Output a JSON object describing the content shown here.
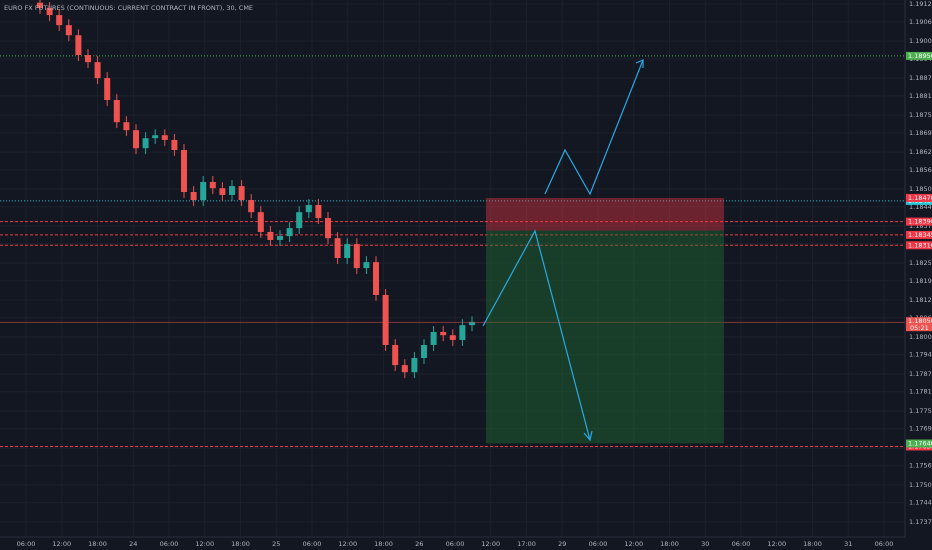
{
  "chart_data": {
    "type": "candlestick",
    "title": "EURO FX FUTURES (CONTINUOUS: CURRENT CONTRACT IN FRONT), 30, CME",
    "up_color": "#26a69a",
    "down_color": "#ef5350",
    "open": [
      1.1913,
      1.19112,
      1.19088,
      1.19054,
      1.1902,
      1.18953,
      1.18929,
      1.18875,
      1.18801,
      1.18726,
      1.18699,
      1.18638,
      1.18672,
      1.18682,
      1.18666,
      1.18632,
      1.1849,
      1.18463,
      1.18524,
      1.18503,
      1.1848,
      1.1851,
      1.18463,
      1.18422,
      1.18355,
      1.18328,
      1.18341,
      1.18368,
      1.18422,
      1.18446,
      1.18402,
      1.18334,
      1.18267,
      1.18314,
      1.18233,
      1.18253,
      1.18142,
      1.17973,
      1.17905,
      1.17881,
      1.17929,
      1.17973,
      1.18017,
      1.18006,
      1.1799,
      1.1804
    ],
    "high": [
      1.1915,
      1.19132,
      1.19108,
      1.19074,
      1.1904,
      1.18973,
      1.18949,
      1.18895,
      1.18821,
      1.18746,
      1.18719,
      1.18692,
      1.18702,
      1.18702,
      1.18686,
      1.18652,
      1.1851,
      1.18544,
      1.18544,
      1.18523,
      1.1853,
      1.1853,
      1.18483,
      1.18442,
      1.18375,
      1.18361,
      1.18388,
      1.18442,
      1.18466,
      1.18466,
      1.18422,
      1.18354,
      1.18334,
      1.18334,
      1.18273,
      1.18273,
      1.18162,
      1.17993,
      1.17925,
      1.17949,
      1.17993,
      1.18037,
      1.18037,
      1.18026,
      1.1806,
      1.1807
    ],
    "low": [
      1.19092,
      1.19068,
      1.19034,
      1.19,
      1.18933,
      1.18909,
      1.18855,
      1.18781,
      1.18706,
      1.18679,
      1.18618,
      1.18618,
      1.18652,
      1.18646,
      1.18612,
      1.1847,
      1.18443,
      1.18443,
      1.18483,
      1.1846,
      1.1846,
      1.18443,
      1.18402,
      1.18335,
      1.18308,
      1.18308,
      1.18321,
      1.18348,
      1.18402,
      1.18382,
      1.18314,
      1.18247,
      1.18247,
      1.18213,
      1.18213,
      1.18122,
      1.17953,
      1.17885,
      1.17861,
      1.17861,
      1.17909,
      1.17953,
      1.17986,
      1.1797,
      1.1797,
      1.1802
    ],
    "close": [
      1.19112,
      1.19088,
      1.19054,
      1.1902,
      1.18953,
      1.18929,
      1.18875,
      1.18801,
      1.18726,
      1.18699,
      1.18638,
      1.18672,
      1.18682,
      1.18666,
      1.18632,
      1.1849,
      1.18463,
      1.18524,
      1.18503,
      1.1848,
      1.1851,
      1.18463,
      1.18422,
      1.18355,
      1.18328,
      1.18341,
      1.18368,
      1.18422,
      1.18446,
      1.18402,
      1.18334,
      1.18267,
      1.18314,
      1.18233,
      1.18253,
      1.18142,
      1.17973,
      1.17905,
      1.17881,
      1.17929,
      1.17973,
      1.18017,
      1.18006,
      1.1799,
      1.1804,
      1.1805
    ],
    "ylim": [
      1.17324,
      1.19139
    ],
    "yticks": [
      1.17375,
      {
        "value": 1.1744,
        "label": "1.17440"
      },
      {
        "value": 1.175,
        "label": "1.17500"
      },
      1.17565,
      1.17625,
      {
        "value": 1.1769,
        "label": "1.17690"
      },
      {
        "value": 1.1775,
        "label": "1.17750"
      },
      1.17815,
      1.17875,
      {
        "value": 1.1794,
        "label": "1.17940"
      },
      {
        "value": 1.18,
        "label": "1.18000"
      },
      1.18065,
      1.18125,
      {
        "value": 1.1819,
        "label": "1.18190"
      },
      {
        "value": 1.1825,
        "label": "1.18250"
      },
      1.18315,
      1.18375,
      {
        "value": 1.1844,
        "label": "1.18440"
      },
      {
        "value": 1.185,
        "label": "1.18500"
      },
      1.18565,
      1.18625,
      {
        "value": 1.1869,
        "label": "1.18690"
      },
      {
        "value": 1.1875,
        "label": "1.18750"
      },
      1.18815,
      1.18875,
      {
        "value": 1.1894,
        "label": "1.18940"
      },
      {
        "value": 1.19,
        "label": "1.19000"
      },
      1.19065,
      1.19125
    ],
    "time_labels": [
      "06:00",
      "12:00",
      "18:00",
      "24",
      "06:00",
      "12:00",
      "18:00",
      "25",
      "06:00",
      "12:00",
      "18:00",
      "26",
      "06:00",
      "12:00",
      "17:00",
      "29",
      "06:00",
      "12:00",
      "18:00",
      "30",
      "06:00",
      "12:00",
      "18:00",
      "31",
      "06:00"
    ],
    "levels": [
      {
        "value": 1.1895,
        "label": "1.18950",
        "color": "#4caf50",
        "style": "dotted"
      },
      {
        "value": 1.1846,
        "label": "1.18460",
        "color": "#26c6da",
        "style": "dotted"
      },
      {
        "value": 1.1839,
        "label": "1.18390",
        "color": "#f23645",
        "style": "dashed"
      },
      {
        "value": 1.18345,
        "label": "1.18345",
        "color": "#f23645",
        "style": "dashed"
      },
      {
        "value": 1.1831,
        "label": "1.18310",
        "color": "#f23645",
        "style": "dashed"
      },
      {
        "value": 1.1763,
        "label": "1.17630",
        "color": "#f23645",
        "style": "dashed"
      }
    ],
    "position": {
      "stop": {
        "value": 1.1847,
        "label": "1.18470"
      },
      "entry": 1.1836,
      "target": {
        "value": 1.1764,
        "label": "1.17640"
      }
    },
    "current_price": {
      "value": 1.1805,
      "label": "1.18050",
      "timer": "05:21"
    }
  }
}
